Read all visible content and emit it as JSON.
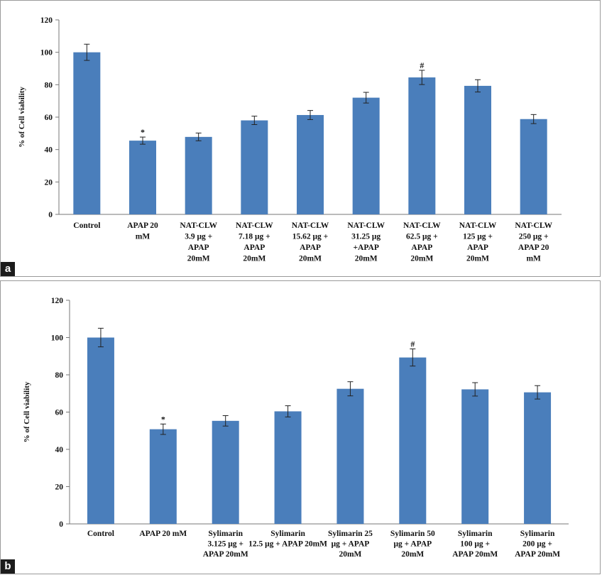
{
  "chart_data": [
    {
      "panel": "a",
      "type": "bar",
      "ylabel": "% of Cell viability",
      "ylim": [
        0,
        120
      ],
      "yticks": [
        0,
        20,
        40,
        60,
        80,
        100,
        120
      ],
      "grid": false,
      "bar_color": "#4a7ebb",
      "categories": [
        [
          "Control"
        ],
        [
          "APAP 20",
          "mM"
        ],
        [
          "NAT-CLW",
          "3.9 μg +",
          "APAP",
          "20mM"
        ],
        [
          "NAT-CLW",
          "7.18 μg +",
          "APAP",
          "20mM"
        ],
        [
          "NAT-CLW",
          "15.62 μg +",
          "APAP",
          "20mM"
        ],
        [
          "NAT-CLW",
          "31.25 μg",
          "+APAP",
          "20mM"
        ],
        [
          "NAT-CLW",
          "62.5 μg +",
          "APAP",
          "20mM"
        ],
        [
          "NAT-CLW",
          "125 μg +",
          "APAP",
          "20mM"
        ],
        [
          "NAT-CLW",
          "250 μg +",
          "APAP 20",
          "mM"
        ]
      ],
      "values": [
        100,
        45.5,
        47.8,
        58,
        61.3,
        72,
        84.5,
        79.3,
        58.8
      ],
      "errors": [
        5,
        2.2,
        2.4,
        2.6,
        2.8,
        3.3,
        4.4,
        3.8,
        2.8
      ],
      "annotations": [
        "",
        "*",
        "",
        "",
        "",
        "",
        "#",
        "",
        ""
      ]
    },
    {
      "panel": "b",
      "type": "bar",
      "ylabel": "% of Cell viability",
      "ylim": [
        0,
        120
      ],
      "yticks": [
        0,
        20,
        40,
        60,
        80,
        100,
        120
      ],
      "grid": false,
      "bar_color": "#4a7ebb",
      "categories": [
        [
          "Control"
        ],
        [
          "APAP 20 mM"
        ],
        [
          "Sylimarin",
          "3.125 μg +",
          "APAP 20mM"
        ],
        [
          "Sylimarin",
          "12.5 μg + APAP 20mM"
        ],
        [
          "Sylimarin 25",
          "μg + APAP",
          "20mM"
        ],
        [
          "Sylimarin 50",
          "μg + APAP",
          "20mM"
        ],
        [
          "Sylimarin",
          "100 μg +",
          "APAP 20mM"
        ],
        [
          "Sylimarin",
          "200 μg +",
          "APAP 20mM"
        ]
      ],
      "values": [
        100,
        50.8,
        55.3,
        60.4,
        72.5,
        89.3,
        72.2,
        70.6
      ],
      "errors": [
        5,
        2.8,
        2.8,
        3,
        3.8,
        4.6,
        3.6,
        3.6
      ],
      "annotations": [
        "",
        "*",
        "",
        "",
        "",
        "#",
        "",
        ""
      ]
    }
  ],
  "panel_labels": [
    "a",
    "b"
  ]
}
